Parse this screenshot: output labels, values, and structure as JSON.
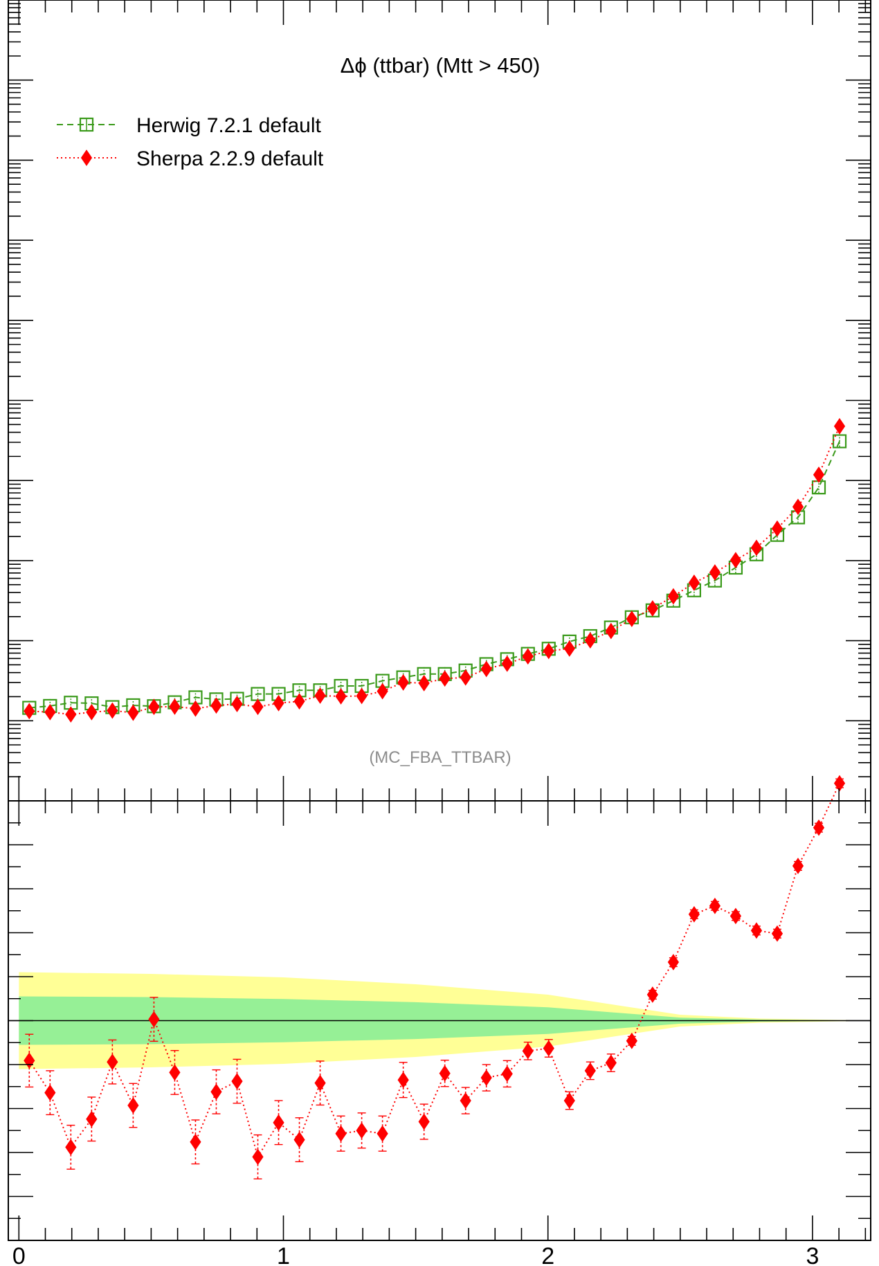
{
  "chart_data": [
    {
      "panel": "main",
      "type": "line",
      "title_symbol": "Δϕ",
      "title_rest": " (ttbar) (Mtt > 450)",
      "annotation": "(MC_FBA_TTBAR)",
      "yscale": "log",
      "xlim": [
        -0.04,
        3.22
      ],
      "ylim": [
        1.0,
        10000000000.0
      ],
      "legend_placement": "top-left",
      "x": [
        0.03927,
        0.11781,
        0.19635,
        0.27489,
        0.35343,
        0.43197,
        0.51051,
        0.58905,
        0.66759,
        0.74613,
        0.82467,
        0.90321,
        0.98175,
        1.06029,
        1.13883,
        1.21737,
        1.29591,
        1.37445,
        1.45299,
        1.53153,
        1.61007,
        1.68861,
        1.76715,
        1.84569,
        1.92423,
        2.00277,
        2.08131,
        2.15985,
        2.23839,
        2.31693,
        2.39547,
        2.47401,
        2.55255,
        2.63109,
        2.70963,
        2.78817,
        2.86671,
        2.94525,
        3.02379,
        3.10233
      ],
      "series": [
        {
          "name": "Herwig 7.2.1 default",
          "color": "#3a9a1a",
          "marker": "open-square",
          "linestyle": "dashed",
          "values": [
            14.5,
            15.3,
            16.8,
            16.5,
            14.8,
            15.6,
            15.2,
            17.0,
            19.6,
            18.5,
            18.8,
            21.6,
            21.6,
            24.0,
            24.0,
            27.2,
            27.2,
            31.5,
            34.8,
            38.3,
            38.3,
            42.4,
            50.9,
            58.7,
            68.4,
            79.3,
            97.5,
            114,
            146,
            196,
            239,
            316,
            426,
            564,
            818,
            1199,
            2096,
            3470,
            8200,
            30900
          ]
        },
        {
          "name": "Sherpa 2.2.9 default",
          "color": "#ff0000",
          "marker": "filled-diamond",
          "linestyle": "dotted",
          "values": [
            13.2,
            12.8,
            12.0,
            12.8,
            13.4,
            12.6,
            14.9,
            15.0,
            14.2,
            15.5,
            16.2,
            14.9,
            16.6,
            17.5,
            20.6,
            20.2,
            20.4,
            23.4,
            30.1,
            29.5,
            33.7,
            34.7,
            44.3,
            51.6,
            63.7,
            74.3,
            79.8,
            101,
            132,
            187,
            253,
            358,
            529,
            711,
            1013,
            1445,
            2510,
            4690,
            11800,
            47600
          ]
        }
      ]
    },
    {
      "panel": "ratio",
      "type": "line",
      "xlim": [
        -0.04,
        3.22
      ],
      "ylim": [
        0.5,
        1.5
      ],
      "x_tick_labels": [
        "0",
        "1",
        "2",
        "3"
      ],
      "reference_line": 1.0,
      "band_colors": {
        "inner": "#96f096",
        "outer": "#ffff96"
      },
      "bands": {
        "x": [
          0,
          0.5,
          1,
          1.5,
          2,
          2.3,
          2.5,
          2.8,
          3.14
        ],
        "inner_halfwidth": [
          0.0551,
          0.0536,
          0.0491,
          0.0419,
          0.0304,
          0.0161,
          0.0069,
          0.0024,
          0.0006
        ],
        "outer_halfwidth": [
          0.1103,
          0.1063,
          0.0984,
          0.0827,
          0.0591,
          0.0315,
          0.0134,
          0.0047,
          0.0013
        ]
      },
      "series": [
        {
          "name": "Sherpa 2.2.9 default",
          "color": "#ff0000",
          "marker": "filled-diamond",
          "linestyle": "dotted",
          "values": [
            0.909,
            0.836,
            0.712,
            0.776,
            0.906,
            0.807,
            1.003,
            0.882,
            0.724,
            0.838,
            0.862,
            0.69,
            0.768,
            0.729,
            0.858,
            0.743,
            0.75,
            0.743,
            0.865,
            0.77,
            0.88,
            0.818,
            0.87,
            0.879,
            0.931,
            0.937,
            0.818,
            0.886,
            0.904,
            0.954,
            1.059,
            1.133,
            1.242,
            1.261,
            1.238,
            1.205,
            1.198,
            1.352,
            1.439,
            1.54
          ],
          "err_up": [
            0.06,
            0.05,
            0.05,
            0.05,
            0.05,
            0.05,
            0.05,
            0.05,
            0.05,
            0.05,
            0.05,
            0.05,
            0.05,
            0.05,
            0.05,
            0.04,
            0.04,
            0.04,
            0.04,
            0.04,
            0.03,
            0.03,
            0.03,
            0.03,
            0.02,
            0.02,
            0.02,
            0.02,
            0.02,
            0.01,
            0.01,
            0.01,
            0.01,
            0.01,
            0.01,
            0.01,
            0.01,
            0.01,
            0.01,
            0.01
          ],
          "err_dn": [
            0.06,
            0.05,
            0.05,
            0.05,
            0.05,
            0.05,
            0.05,
            0.05,
            0.05,
            0.05,
            0.05,
            0.05,
            0.05,
            0.05,
            0.05,
            0.04,
            0.04,
            0.04,
            0.04,
            0.04,
            0.03,
            0.03,
            0.03,
            0.03,
            0.02,
            0.02,
            0.02,
            0.02,
            0.02,
            0.01,
            0.01,
            0.01,
            0.01,
            0.01,
            0.01,
            0.01,
            0.01,
            0.01,
            0.01,
            0.01
          ]
        }
      ]
    }
  ]
}
